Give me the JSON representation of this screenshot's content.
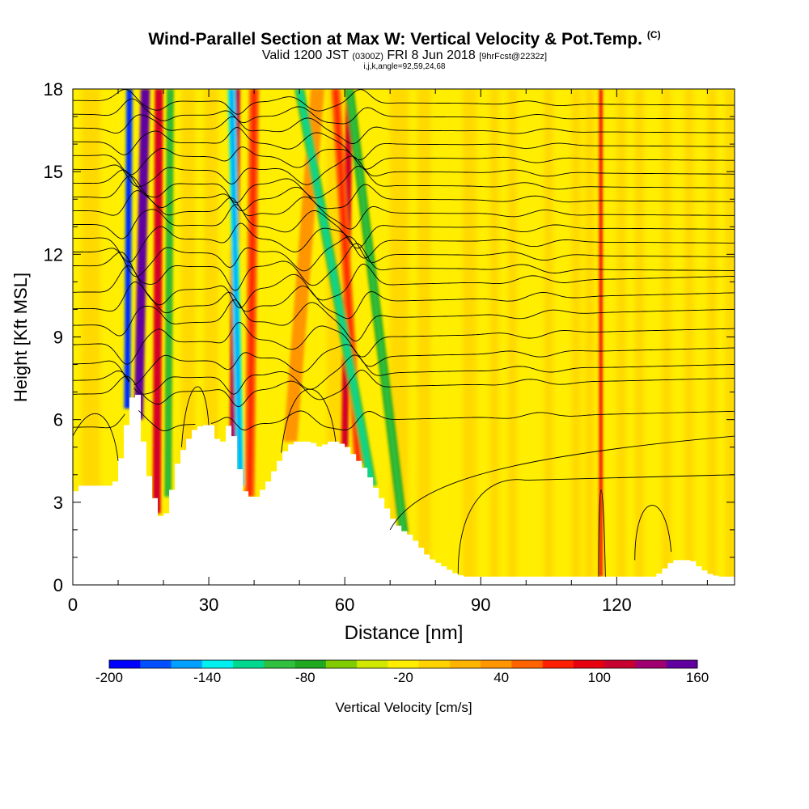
{
  "title": {
    "main": "Wind-Parallel Section at Max W: Vertical Velocity & Pot.Temp.",
    "main_badge": "(C)",
    "valid_prefix": "Valid 1200 JST",
    "valid_utc": "(0300Z)",
    "valid_date": "FRI 8 Jun 2018",
    "forecast": "[9hrFcst@2232z]",
    "indices": "i,j,k,angle=92,59,24,68"
  },
  "chart_data": {
    "type": "heatmap",
    "xlabel": "Distance [nm]",
    "ylabel": "Height [Kft MSL]",
    "xlim": [
      0,
      146
    ],
    "ylim": [
      0,
      18
    ],
    "x_ticks": [
      0,
      30,
      60,
      90,
      120
    ],
    "y_ticks": [
      0,
      3,
      6,
      9,
      12,
      15,
      18
    ],
    "colorbar": {
      "label": "Vertical Velocity [cm/s]",
      "min": -200,
      "max": 160,
      "step": 20,
      "tick_labels": [
        "-200",
        "-140",
        "-80",
        "-20",
        "40",
        "100",
        "160"
      ],
      "colors": [
        "#0000ff",
        "#0050ff",
        "#00a0ff",
        "#00f0f0",
        "#00d890",
        "#30c040",
        "#20a820",
        "#80cc00",
        "#d0e800",
        "#ffee00",
        "#ffd200",
        "#ffb400",
        "#ff9600",
        "#ff6400",
        "#ff2000",
        "#e60010",
        "#c80030",
        "#a00070",
        "#6000a0"
      ]
    },
    "terrain_kft": [
      [
        0,
        3.4
      ],
      [
        1,
        3.6
      ],
      [
        8,
        3.6
      ],
      [
        9,
        3.8
      ],
      [
        10,
        4.6
      ],
      [
        11,
        5.6
      ],
      [
        12,
        6.4
      ],
      [
        13,
        7.2
      ],
      [
        14,
        6.8
      ],
      [
        15,
        5.2
      ],
      [
        16,
        4.1
      ],
      [
        17,
        3.5
      ],
      [
        18,
        2.8
      ],
      [
        19,
        2.4
      ],
      [
        20,
        2.6
      ],
      [
        21,
        3.2
      ],
      [
        22,
        4.2
      ],
      [
        24,
        5.0
      ],
      [
        26,
        5.6
      ],
      [
        28,
        5.8
      ],
      [
        30,
        5.8
      ],
      [
        31,
        5.4
      ],
      [
        32,
        5.0
      ],
      [
        33,
        5.4
      ],
      [
        34,
        5.9
      ],
      [
        35,
        5.4
      ],
      [
        36,
        4.4
      ],
      [
        37,
        3.6
      ],
      [
        38,
        3.2
      ],
      [
        40,
        3.2
      ],
      [
        42,
        3.6
      ],
      [
        44,
        4.2
      ],
      [
        46,
        4.8
      ],
      [
        48,
        5.2
      ],
      [
        50,
        5.2
      ],
      [
        52,
        5.2
      ],
      [
        54,
        5.0
      ],
      [
        56,
        5.2
      ],
      [
        58,
        5.2
      ],
      [
        60,
        5.0
      ],
      [
        62,
        4.6
      ],
      [
        64,
        4.2
      ],
      [
        66,
        3.6
      ],
      [
        68,
        3.0
      ],
      [
        70,
        2.4
      ],
      [
        72,
        2.0
      ],
      [
        74,
        1.8
      ],
      [
        76,
        1.4
      ],
      [
        78,
        1.0
      ],
      [
        80,
        0.8
      ],
      [
        82,
        0.6
      ],
      [
        84,
        0.4
      ],
      [
        86,
        0.3
      ],
      [
        100,
        0.3
      ],
      [
        120,
        0.3
      ],
      [
        128,
        0.3
      ],
      [
        130,
        0.6
      ],
      [
        132,
        0.9
      ],
      [
        136,
        0.9
      ],
      [
        138,
        0.6
      ],
      [
        140,
        0.4
      ],
      [
        142,
        0.3
      ],
      [
        146,
        0.3
      ]
    ],
    "updraft_columns": [
      {
        "x_base": 14.5,
        "x_top": 16,
        "width": 2.0,
        "w_cms": 160
      },
      {
        "x_base": 18.5,
        "x_top": 19,
        "width": 1.8,
        "w_cms": 100
      },
      {
        "x_base": 35.5,
        "x_top": 36,
        "width": 1.8,
        "w_cms": 120
      },
      {
        "x_base": 39,
        "x_top": 40,
        "width": 2.2,
        "w_cms": 60
      },
      {
        "x_base": 48,
        "x_top": 54,
        "width": 3.0,
        "w_cms": 40
      },
      {
        "x_base": 60,
        "x_top": 61,
        "width": 1.5,
        "w_cms": 100
      },
      {
        "x_base": 63,
        "x_top": 58,
        "width": 2.0,
        "w_cms": 60
      },
      {
        "x_base": 116.5,
        "x_top": 116.5,
        "width": 0.8,
        "w_cms": 80
      }
    ],
    "downdraft_columns": [
      {
        "x_base": 12,
        "x_top": 12.5,
        "width": 1.4,
        "w_cms": -180
      },
      {
        "x_base": 21,
        "x_top": 21.5,
        "width": 1.5,
        "w_cms": -80
      },
      {
        "x_base": 37,
        "x_top": 35,
        "width": 1.6,
        "w_cms": -140
      },
      {
        "x_base": 66,
        "x_top": 50,
        "width": 2.2,
        "w_cms": -100
      },
      {
        "x_base": 73,
        "x_top": 61,
        "width": 2.0,
        "w_cms": -80
      }
    ],
    "isentropes_base_kft": [
      6.0,
      7.2,
      7.7,
      8.3,
      9.0,
      9.7,
      10.3,
      10.9,
      11.5,
      12.0,
      12.5,
      13.0,
      13.5,
      14.0,
      14.5,
      15.0,
      15.5,
      16.0,
      16.5,
      17.0,
      17.5
    ]
  }
}
